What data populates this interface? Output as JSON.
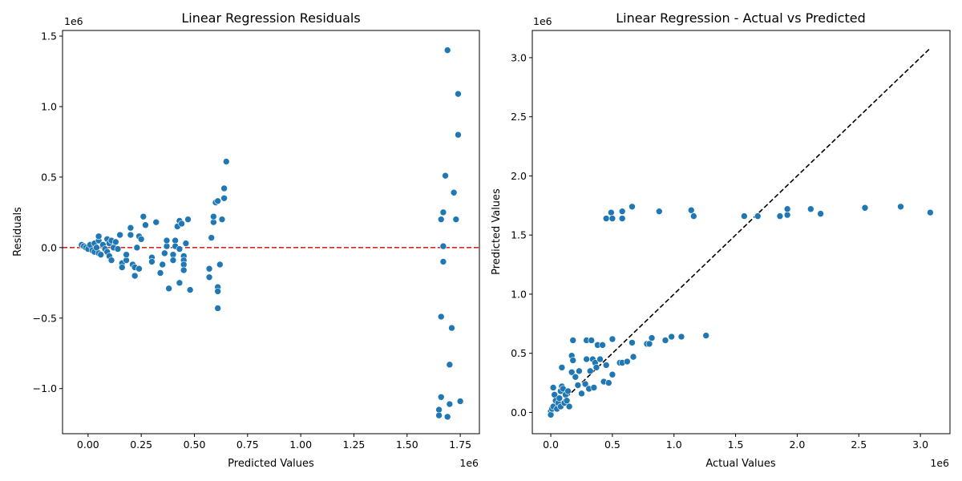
{
  "chart_data": [
    {
      "type": "scatter",
      "title": "Linear Regression Residuals",
      "xlabel": "Predicted Values",
      "ylabel": "Residuals",
      "x_offset_label": "1e6",
      "y_offset_label": "1e6",
      "xlim": [
        -0.12,
        1.84
      ],
      "ylim": [
        -1.32,
        1.54
      ],
      "x_ticks": [
        0.0,
        0.25,
        0.5,
        0.75,
        1.0,
        1.25,
        1.5,
        1.75
      ],
      "x_tick_labels": [
        "0.00",
        "0.25",
        "0.50",
        "0.75",
        "1.00",
        "1.25",
        "1.50",
        "1.75"
      ],
      "y_ticks": [
        -1.0,
        -0.5,
        0.0,
        0.5,
        1.0,
        1.5
      ],
      "y_tick_labels": [
        "−1.0",
        "−0.5",
        "0.0",
        "0.5",
        "1.0",
        "1.5"
      ],
      "reference_line": {
        "type": "horizontal",
        "y": 0,
        "style": "dashed",
        "color": "#d62728"
      },
      "marker_color": "#1f77b4",
      "grid": false,
      "points": [
        [
          -0.03,
          0.02
        ],
        [
          -0.02,
          0.01
        ],
        [
          -0.01,
          0.0
        ],
        [
          0.0,
          -0.01
        ],
        [
          0.01,
          0.02
        ],
        [
          0.02,
          -0.02
        ],
        [
          0.03,
          0.03
        ],
        [
          0.03,
          -0.03
        ],
        [
          0.04,
          0.0
        ],
        [
          0.05,
          0.05
        ],
        [
          0.05,
          -0.04
        ],
        [
          0.05,
          0.08
        ],
        [
          0.06,
          -0.05
        ],
        [
          0.07,
          0.02
        ],
        [
          0.08,
          -0.01
        ],
        [
          0.09,
          0.06
        ],
        [
          0.09,
          -0.03
        ],
        [
          0.1,
          0.03
        ],
        [
          0.1,
          -0.06
        ],
        [
          0.11,
          0.05
        ],
        [
          0.11,
          -0.09
        ],
        [
          0.12,
          0.0
        ],
        [
          0.13,
          0.04
        ],
        [
          0.14,
          -0.01
        ],
        [
          0.15,
          0.09
        ],
        [
          0.16,
          -0.11
        ],
        [
          0.16,
          -0.14
        ],
        [
          0.18,
          -0.09
        ],
        [
          0.18,
          -0.05
        ],
        [
          0.2,
          0.09
        ],
        [
          0.2,
          0.14
        ],
        [
          0.21,
          -0.12
        ],
        [
          0.22,
          -0.2
        ],
        [
          0.22,
          -0.14
        ],
        [
          0.23,
          0.0
        ],
        [
          0.24,
          0.08
        ],
        [
          0.24,
          -0.15
        ],
        [
          0.25,
          0.06
        ],
        [
          0.26,
          0.22
        ],
        [
          0.27,
          0.16
        ],
        [
          0.3,
          -0.07
        ],
        [
          0.3,
          -0.1
        ],
        [
          0.32,
          0.18
        ],
        [
          0.34,
          -0.18
        ],
        [
          0.35,
          -0.12
        ],
        [
          0.36,
          -0.04
        ],
        [
          0.37,
          0.01
        ],
        [
          0.37,
          0.05
        ],
        [
          0.38,
          -0.29
        ],
        [
          0.4,
          -0.05
        ],
        [
          0.4,
          -0.09
        ],
        [
          0.41,
          0.05
        ],
        [
          0.41,
          0.01
        ],
        [
          0.42,
          0.15
        ],
        [
          0.43,
          -0.01
        ],
        [
          0.43,
          0.19
        ],
        [
          0.43,
          -0.25
        ],
        [
          0.44,
          0.17
        ],
        [
          0.45,
          -0.06
        ],
        [
          0.45,
          -0.09
        ],
        [
          0.45,
          -0.12
        ],
        [
          0.45,
          -0.16
        ],
        [
          0.46,
          0.03
        ],
        [
          0.47,
          0.2
        ],
        [
          0.48,
          -0.3
        ],
        [
          0.57,
          -0.21
        ],
        [
          0.57,
          -0.15
        ],
        [
          0.58,
          0.07
        ],
        [
          0.59,
          0.18
        ],
        [
          0.59,
          0.22
        ],
        [
          0.6,
          0.32
        ],
        [
          0.61,
          0.33
        ],
        [
          0.61,
          -0.28
        ],
        [
          0.61,
          -0.31
        ],
        [
          0.61,
          -0.43
        ],
        [
          0.62,
          -0.12
        ],
        [
          0.63,
          0.2
        ],
        [
          0.64,
          0.35
        ],
        [
          0.64,
          0.42
        ],
        [
          0.65,
          0.61
        ],
        [
          1.65,
          -1.15
        ],
        [
          1.65,
          -1.19
        ],
        [
          1.66,
          -1.06
        ],
        [
          1.66,
          -0.49
        ],
        [
          1.66,
          0.2
        ],
        [
          1.67,
          0.01
        ],
        [
          1.67,
          0.25
        ],
        [
          1.67,
          -0.1
        ],
        [
          1.68,
          0.51
        ],
        [
          1.69,
          1.4
        ],
        [
          1.69,
          -1.2
        ],
        [
          1.7,
          -1.11
        ],
        [
          1.7,
          -0.83
        ],
        [
          1.71,
          -0.57
        ],
        [
          1.72,
          0.39
        ],
        [
          1.73,
          0.2
        ],
        [
          1.74,
          0.8
        ],
        [
          1.74,
          1.09
        ],
        [
          1.75,
          -1.09
        ]
      ]
    },
    {
      "type": "scatter",
      "title": "Linear Regression - Actual vs Predicted",
      "xlabel": "Actual Values",
      "ylabel": "Predicted Values",
      "x_offset_label": "1e6",
      "y_offset_label": "1e6",
      "xlim": [
        -0.15,
        3.24
      ],
      "ylim": [
        -0.18,
        3.23
      ],
      "x_ticks": [
        0.0,
        0.5,
        1.0,
        1.5,
        2.0,
        2.5,
        3.0
      ],
      "x_tick_labels": [
        "0.0",
        "0.5",
        "1.0",
        "1.5",
        "2.0",
        "2.5",
        "3.0"
      ],
      "y_ticks": [
        0.0,
        0.5,
        1.0,
        1.5,
        2.0,
        2.5,
        3.0
      ],
      "y_tick_labels": [
        "0.0",
        "0.5",
        "1.0",
        "1.5",
        "2.0",
        "2.5",
        "3.0"
      ],
      "reference_line": {
        "type": "diagonal",
        "from": [
          0,
          0
        ],
        "to": [
          3.08,
          3.08
        ],
        "style": "dashed",
        "color": "#000000"
      },
      "marker_color": "#1f77b4",
      "grid": false,
      "points": [
        [
          0.0,
          0.01
        ],
        [
          0.0,
          -0.02
        ],
        [
          0.01,
          0.03
        ],
        [
          0.02,
          0.05
        ],
        [
          0.02,
          0.21
        ],
        [
          0.03,
          0.15
        ],
        [
          0.04,
          0.1
        ],
        [
          0.05,
          0.03
        ],
        [
          0.06,
          0.08
        ],
        [
          0.07,
          0.12
        ],
        [
          0.08,
          0.05
        ],
        [
          0.08,
          0.18
        ],
        [
          0.09,
          0.22
        ],
        [
          0.09,
          0.38
        ],
        [
          0.1,
          0.2
        ],
        [
          0.11,
          0.08
        ],
        [
          0.12,
          0.15
        ],
        [
          0.13,
          0.1
        ],
        [
          0.14,
          0.18
        ],
        [
          0.15,
          0.05
        ],
        [
          0.17,
          0.34
        ],
        [
          0.17,
          0.48
        ],
        [
          0.18,
          0.44
        ],
        [
          0.18,
          0.61
        ],
        [
          0.2,
          0.3
        ],
        [
          0.22,
          0.23
        ],
        [
          0.23,
          0.35
        ],
        [
          0.25,
          0.16
        ],
        [
          0.28,
          0.24
        ],
        [
          0.29,
          0.45
        ],
        [
          0.29,
          0.61
        ],
        [
          0.31,
          0.2
        ],
        [
          0.32,
          0.35
        ],
        [
          0.33,
          0.61
        ],
        [
          0.34,
          0.45
        ],
        [
          0.35,
          0.21
        ],
        [
          0.36,
          0.42
        ],
        [
          0.37,
          0.38
        ],
        [
          0.38,
          0.57
        ],
        [
          0.4,
          0.45
        ],
        [
          0.42,
          0.57
        ],
        [
          0.43,
          0.26
        ],
        [
          0.45,
          0.4
        ],
        [
          0.45,
          1.64
        ],
        [
          0.47,
          0.25
        ],
        [
          0.49,
          1.69
        ],
        [
          0.5,
          0.32
        ],
        [
          0.5,
          1.64
        ],
        [
          0.5,
          0.62
        ],
        [
          0.56,
          0.42
        ],
        [
          0.58,
          0.42
        ],
        [
          0.58,
          1.7
        ],
        [
          0.58,
          1.64
        ],
        [
          0.62,
          0.43
        ],
        [
          0.66,
          0.59
        ],
        [
          0.66,
          1.74
        ],
        [
          0.67,
          0.47
        ],
        [
          0.78,
          0.58
        ],
        [
          0.8,
          0.58
        ],
        [
          0.82,
          0.63
        ],
        [
          0.88,
          1.7
        ],
        [
          0.93,
          0.61
        ],
        [
          0.98,
          0.64
        ],
        [
          1.06,
          0.64
        ],
        [
          1.14,
          1.71
        ],
        [
          1.16,
          1.66
        ],
        [
          1.26,
          0.65
        ],
        [
          1.57,
          1.66
        ],
        [
          1.68,
          1.66
        ],
        [
          1.86,
          1.66
        ],
        [
          1.92,
          1.67
        ],
        [
          1.92,
          1.72
        ],
        [
          2.11,
          1.72
        ],
        [
          2.19,
          1.68
        ],
        [
          2.55,
          1.73
        ],
        [
          2.84,
          1.74
        ],
        [
          3.08,
          1.69
        ]
      ]
    }
  ]
}
